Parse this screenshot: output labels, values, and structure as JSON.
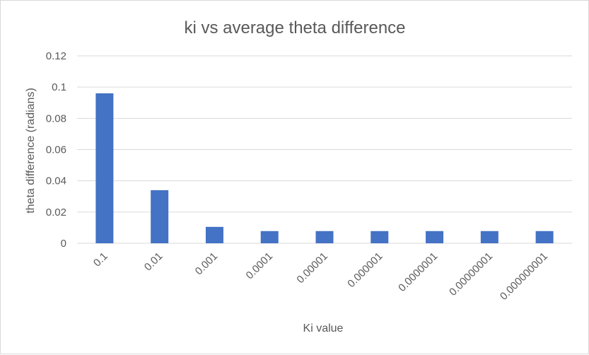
{
  "chart_data": {
    "type": "bar",
    "title": "ki vs average theta difference",
    "xlabel": "Ki value",
    "ylabel": "theta difference (radians)",
    "categories": [
      "0.1",
      "0.01",
      "0.001",
      "0.0001",
      "0.00001",
      "0.000001",
      "0.0000001",
      "0.00000001",
      "0.000000001"
    ],
    "values": [
      0.096,
      0.034,
      0.0105,
      0.0078,
      0.0078,
      0.0078,
      0.0078,
      0.0078,
      0.0078
    ],
    "ylim": [
      0,
      0.12
    ],
    "yticks": [
      "0",
      "0.02",
      "0.04",
      "0.06",
      "0.08",
      "0.1",
      "0.12"
    ],
    "bar_color": "#4472c4",
    "grid": true,
    "legend": "none"
  }
}
